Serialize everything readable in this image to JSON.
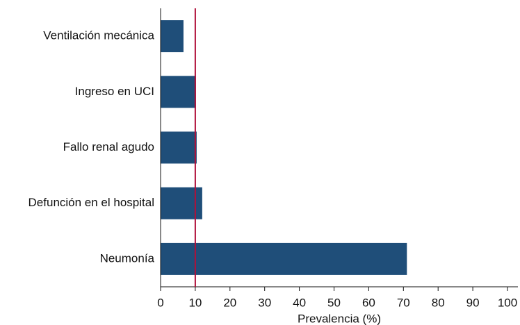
{
  "chart_data": {
    "type": "bar",
    "orientation": "horizontal",
    "x_label": "Prevalencia (%)",
    "categories": [
      "Ventilación mecánica",
      "Ingreso en UCI",
      "Fallo renal agudo",
      "Defunción en el hospital",
      "Neumonía"
    ],
    "values": [
      6.6,
      10.2,
      10.4,
      12,
      71
    ],
    "color": "#1f4e79",
    "reference_line": 10,
    "reference_color": "#b0103a",
    "xlim": [
      0,
      100
    ],
    "xticks": [
      0,
      10,
      20,
      30,
      40,
      50,
      60,
      70,
      80,
      90,
      100
    ]
  }
}
